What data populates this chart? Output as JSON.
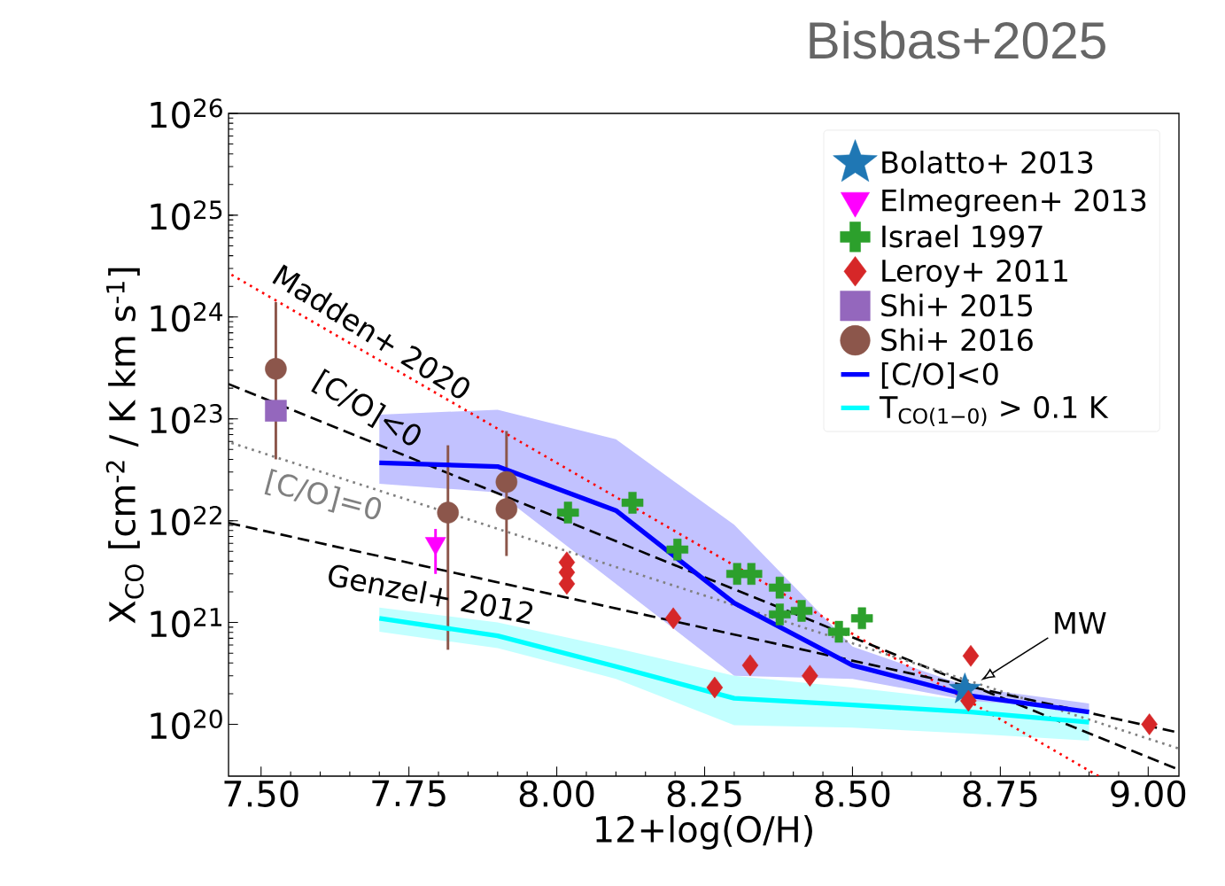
{
  "chart_data": {
    "type": "scatter",
    "title": "Bisbas+2025",
    "xlabel": "12+log(O/H)",
    "ylabel": "X$_{CO}$ [cm$^{-2}$ / K km s$^{-1}$]",
    "log": "y",
    "legend": "top right",
    "xlim": [
      7.445,
      9.052
    ],
    "ylim": [
      3.1e+19,
      1e+26
    ],
    "xticks": [
      {
        "value": 7.5,
        "label": "7.50"
      },
      {
        "value": 7.75,
        "label": "7.75"
      },
      {
        "value": 8.0,
        "label": "8.00"
      },
      {
        "value": 8.25,
        "label": "8.25"
      },
      {
        "value": 8.5,
        "label": "8.50"
      },
      {
        "value": 8.75,
        "label": "8.75"
      },
      {
        "value": 9.0,
        "label": "9.00"
      }
    ],
    "yticks": [
      {
        "value": 1e+20,
        "label": "10$^{20}$"
      },
      {
        "value": 1e+21,
        "label": "10$^{21}$"
      },
      {
        "value": 1e+22,
        "label": "10$^{22}$"
      },
      {
        "value": 1e+23,
        "label": "10$^{23}$"
      },
      {
        "value": 1e+24,
        "label": "10$^{24}$"
      },
      {
        "value": 1e+25,
        "label": "10$^{25}$"
      },
      {
        "value": 1e+26,
        "label": "10$^{26}$"
      }
    ],
    "series": [
      {
        "name": "Bolatto+ 2013",
        "marker": "star",
        "color": "#1f77b4",
        "x": [
          8.69
        ],
        "values": [
          2.2e+20
        ]
      },
      {
        "name": "Elmegreen+ 2013",
        "marker": "triangle",
        "color": "#ff00ff",
        "x": [
          7.795
        ],
        "values": [
          6e+21
        ],
        "errors": [
          [
            3e+21,
            8.3e+21
          ]
        ]
      },
      {
        "name": "Israel 1997",
        "marker": "cross",
        "color": "#2ca02c",
        "x": [
          8.019,
          8.128,
          8.204,
          8.305,
          8.329,
          8.377,
          8.377,
          8.414,
          8.477,
          8.516
        ],
        "values": [
          1.2e+22,
          1.5e+22,
          5.2e+21,
          3e+21,
          3e+21,
          2.2e+21,
          1.2e+21,
          1.3e+21,
          8.1e+20,
          1.1e+21
        ]
      },
      {
        "name": "Leroy+ 2011",
        "marker": "diamond",
        "color": "#d62728",
        "x": [
          8.017,
          8.017,
          8.017,
          8.197,
          8.267,
          8.327,
          8.428,
          8.7,
          8.696,
          9.002
        ],
        "values": [
          3.9e+21,
          3.1e+21,
          2.4e+21,
          1.1e+21,
          2.3e+20,
          3.8e+20,
          3e+20,
          4.7e+20,
          1.7e+20,
          1e+20
        ]
      },
      {
        "name": "Shi+ 2015",
        "marker": "square",
        "color": "#9467bd",
        "x": [
          7.525
        ],
        "values": [
          1.2e+23
        ]
      },
      {
        "name": "Shi+ 2016",
        "marker": "circle",
        "color": "#8c564b",
        "x": [
          7.525,
          7.816,
          7.915,
          7.915
        ],
        "values": [
          3.1e+23,
          1.2e+22,
          2.4e+22,
          1.3e+22
        ],
        "errors": [
          [
            4e+22,
            1.4e+24
          ],
          [
            5.4e+20,
            5.5e+22
          ],
          null,
          [
            4.5e+21,
            7.6e+22
          ]
        ]
      },
      {
        "name": "[C/O]<0",
        "type": "line",
        "line_style": "solid",
        "color": "#0000ff",
        "x": [
          7.7,
          7.9,
          8.1,
          8.3,
          8.5,
          8.7,
          8.9
        ],
        "values": [
          3.7e+22,
          3.4e+22,
          1.26e+22,
          1.55e+21,
          3.8e+20,
          1.9e+20,
          1.32e+20
        ],
        "lower": [
          2.3e+22,
          1.9e+22,
          2.4e+21,
          3e+20,
          2.8e+20,
          1.7e+20,
          1.2e+20
        ],
        "upper": [
          1.1e+23,
          1.23e+23,
          6.3e+22,
          9.1e+21,
          5.8e+20,
          2.3e+20,
          1.6e+20
        ]
      },
      {
        "name": "T$_{CO(1−0)}$ > 0.1 K",
        "type": "line",
        "line_style": "solid",
        "color": "#00ffff",
        "x": [
          7.7,
          7.9,
          8.1,
          8.3,
          8.5,
          8.7,
          8.9
        ],
        "values": [
          1.1e+21,
          7.4e+20,
          3.7e+20,
          1.8e+20,
          1.55e+20,
          1.32e+20,
          1.05e+20
        ],
        "lower": [
          8.1e+20,
          5.6e+20,
          2.8e+20,
          9.8e+19,
          9.3e+19,
          8.1e+19,
          6.9e+19
        ],
        "upper": [
          1.4e+21,
          1e+21,
          5.6e+20,
          3e+20,
          2.3e+20,
          1.7e+20,
          1.4e+20
        ]
      },
      {
        "type": "line",
        "line_style": "dotted",
        "color": "#ff0000",
        "x": [
          7.45,
          8.916
        ],
        "values": [
          2.6e+24,
          3.1e+19
        ]
      },
      {
        "type": "line",
        "line_style": "dashed",
        "color": "#000000",
        "x": [
          7.445,
          9.051
        ],
        "values": [
          2.2e+23,
          3.6e+19
        ]
      },
      {
        "type": "line",
        "line_style": "dotted",
        "color": "#808080",
        "x": [
          7.45,
          9.051
        ],
        "values": [
          5.8e+22,
          5.8e+19
        ]
      },
      {
        "type": "line",
        "line_style": "dashed",
        "color": "#000000",
        "x": [
          7.445,
          9.051
        ],
        "values": [
          9.5e+21,
          8.3e+19
        ]
      }
    ],
    "annotations": [
      "Madden+ 2020",
      "[C/O]<0",
      "[C/O]=0",
      "Genzel+ 2012",
      {
        "text": "MW",
        "x": 8.717,
        "y": 2.7e+20
      }
    ]
  }
}
